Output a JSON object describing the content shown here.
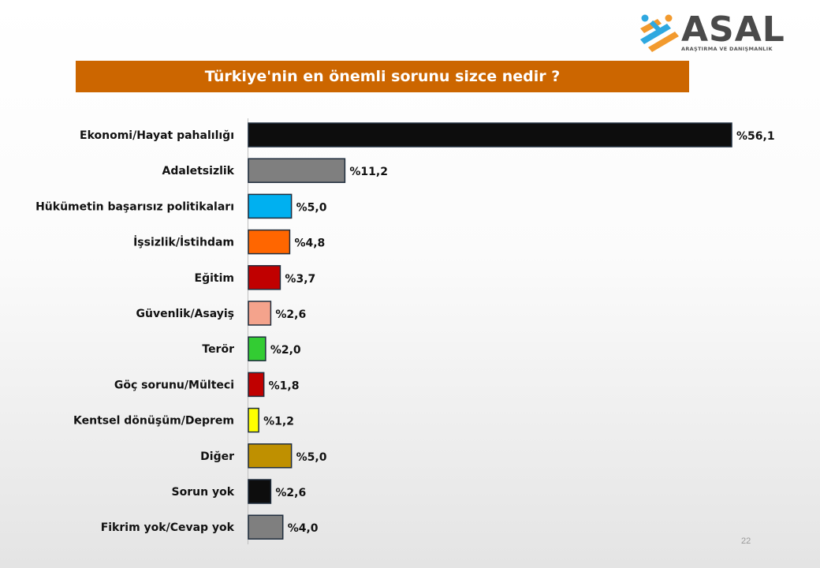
{
  "logo": {
    "name": "ASAL",
    "tagline": "ARAŞTIRMA VE DANIŞMANLIK",
    "colors": [
      "#f29a2e",
      "#2fa8e0"
    ]
  },
  "title": "Türkiye'nin en önemli sorunu sizce nedir ?",
  "page_number": "22",
  "chart_data": {
    "type": "bar",
    "orientation": "horizontal",
    "title": "Türkiye'nin en önemli sorunu sizce nedir ?",
    "categories": [
      "Ekonomi/Hayat pahalılığı",
      "Adaletsizlik",
      "Hükümetin başarısız politikaları",
      "İşsizlik/İstihdam",
      "Eğitim",
      "Güvenlik/Asayiş",
      "Terör",
      "Göç sorunu/Mülteci",
      "Kentsel dönüşüm/Deprem",
      "Diğer",
      "Sorun yok",
      "Fikrim yok/Cevap yok"
    ],
    "values": [
      56.1,
      11.2,
      5.0,
      4.8,
      3.7,
      2.6,
      2.0,
      1.8,
      1.2,
      5.0,
      2.6,
      4.0
    ],
    "value_labels": [
      "%56,1",
      "%11,2",
      "%5,0",
      "%4,8",
      "%3,7",
      "%2,6",
      "%2,0",
      "%1,8",
      "%1,2",
      "%5,0",
      "%2,6",
      "%4,0"
    ],
    "colors": [
      "#0d0d0d",
      "#7f7f7f",
      "#00b0f0",
      "#ff6600",
      "#c00000",
      "#f4a38c",
      "#33cc33",
      "#c00000",
      "#ffff00",
      "#bf9000",
      "#0d0d0d",
      "#7f7f7f"
    ],
    "xlim": [
      0,
      56.1
    ],
    "grid": false,
    "legend": "none"
  }
}
